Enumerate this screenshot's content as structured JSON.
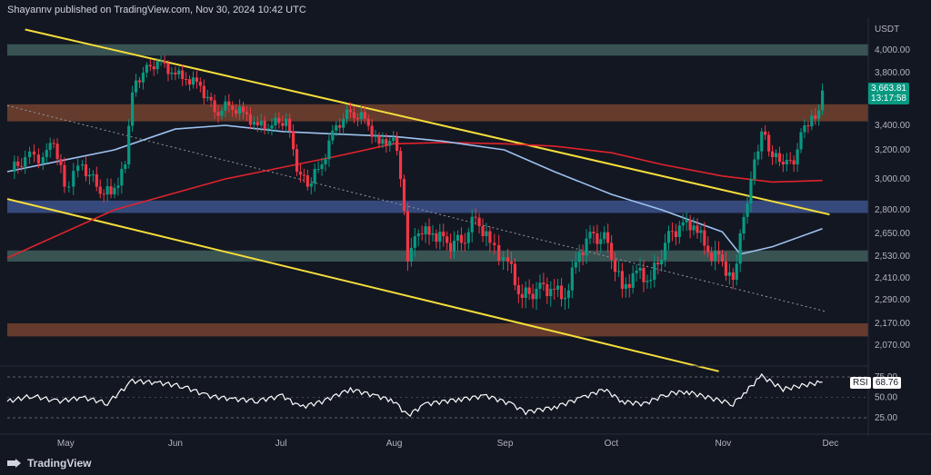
{
  "header": {
    "text": "Shayannv published on TradingView.com, Nov 30, 2024 10:42 UTC"
  },
  "currency": "USDT",
  "price_axis_labels": [
    "4,000.00",
    "3,800.00",
    "3,400.00",
    "3,200.00",
    "3,000.00",
    "2,800.00",
    "2,650.00",
    "2,530.00",
    "2,410.00",
    "2,290.00",
    "2,170.00",
    "2,070.00"
  ],
  "time_axis_labels": [
    "May",
    "Jun",
    "Jul",
    "Aug",
    "Sep",
    "Oct",
    "Nov",
    "Dec"
  ],
  "last_price": {
    "price": "3,663.81",
    "countdown": "13:17:58"
  },
  "rsi": {
    "name": "RSI",
    "value": "68.76",
    "axis_labels": [
      "75.00",
      "50.00",
      "25.00"
    ]
  },
  "footer": {
    "brand": "TradingView"
  },
  "colors": {
    "background": "#131722",
    "up": "#089981",
    "down": "#f23645",
    "support_zone": "#6e3f2e",
    "resistance_zone": "#3d5a58",
    "blue_zone": "#3b4f86",
    "trendline": "#f5dd3b",
    "ma_red": "#e0232b",
    "ma_blue": "#9ec2ef",
    "rsi_line": "#ffffff"
  },
  "chart_data": {
    "type": "line",
    "title": "",
    "x_start": "2024-04-15",
    "x_end": "2024-12-08",
    "y_axis": {
      "unit": "USDT",
      "ticks": [
        4000,
        3800,
        3400,
        3200,
        3000,
        2800,
        2650,
        2530,
        2410,
        2290,
        2170,
        2070
      ]
    },
    "price_series": [
      [
        "2024-04-16",
        3050
      ],
      [
        "2024-04-20",
        3150
      ],
      [
        "2024-04-25",
        3150
      ],
      [
        "2024-04-28",
        3250
      ],
      [
        "2024-05-01",
        2950
      ],
      [
        "2024-05-06",
        3100
      ],
      [
        "2024-05-10",
        2950
      ],
      [
        "2024-05-14",
        2900
      ],
      [
        "2024-05-18",
        3100
      ],
      [
        "2024-05-20",
        3650
      ],
      [
        "2024-05-23",
        3800
      ],
      [
        "2024-05-27",
        3900
      ],
      [
        "2024-05-31",
        3800
      ],
      [
        "2024-06-04",
        3750
      ],
      [
        "2024-06-08",
        3700
      ],
      [
        "2024-06-12",
        3500
      ],
      [
        "2024-06-16",
        3550
      ],
      [
        "2024-06-20",
        3500
      ],
      [
        "2024-06-24",
        3400
      ],
      [
        "2024-06-28",
        3400
      ],
      [
        "2024-07-02",
        3450
      ],
      [
        "2024-07-05",
        3050
      ],
      [
        "2024-07-08",
        2950
      ],
      [
        "2024-07-12",
        3100
      ],
      [
        "2024-07-16",
        3400
      ],
      [
        "2024-07-20",
        3500
      ],
      [
        "2024-07-24",
        3450
      ],
      [
        "2024-07-28",
        3250
      ],
      [
        "2024-08-01",
        3300
      ],
      [
        "2024-08-03",
        3000
      ],
      [
        "2024-08-05",
        2500
      ],
      [
        "2024-08-08",
        2650
      ],
      [
        "2024-08-12",
        2650
      ],
      [
        "2024-08-16",
        2600
      ],
      [
        "2024-08-20",
        2600
      ],
      [
        "2024-08-24",
        2750
      ],
      [
        "2024-08-28",
        2600
      ],
      [
        "2024-09-02",
        2500
      ],
      [
        "2024-09-06",
        2300
      ],
      [
        "2024-09-10",
        2350
      ],
      [
        "2024-09-14",
        2350
      ],
      [
        "2024-09-18",
        2300
      ],
      [
        "2024-09-22",
        2550
      ],
      [
        "2024-09-26",
        2650
      ],
      [
        "2024-09-30",
        2600
      ],
      [
        "2024-10-04",
        2350
      ],
      [
        "2024-10-08",
        2450
      ],
      [
        "2024-10-12",
        2400
      ],
      [
        "2024-10-16",
        2600
      ],
      [
        "2024-10-20",
        2700
      ],
      [
        "2024-10-24",
        2700
      ],
      [
        "2024-10-28",
        2550
      ],
      [
        "2024-11-01",
        2500
      ],
      [
        "2024-11-04",
        2400
      ],
      [
        "2024-11-06",
        2650
      ],
      [
        "2024-11-09",
        3000
      ],
      [
        "2024-11-12",
        3350
      ],
      [
        "2024-11-15",
        3150
      ],
      [
        "2024-11-18",
        3100
      ],
      [
        "2024-11-21",
        3100
      ],
      [
        "2024-11-24",
        3400
      ],
      [
        "2024-11-27",
        3450
      ],
      [
        "2024-11-29",
        3664
      ]
    ],
    "ma_red": [
      [
        "2024-04-15",
        2520
      ],
      [
        "2024-05-15",
        2800
      ],
      [
        "2024-06-15",
        3000
      ],
      [
        "2024-07-15",
        3150
      ],
      [
        "2024-08-01",
        3250
      ],
      [
        "2024-08-15",
        3260
      ],
      [
        "2024-09-01",
        3250
      ],
      [
        "2024-09-15",
        3230
      ],
      [
        "2024-10-01",
        3180
      ],
      [
        "2024-10-15",
        3100
      ],
      [
        "2024-11-01",
        3020
      ],
      [
        "2024-11-15",
        2980
      ],
      [
        "2024-11-29",
        2990
      ]
    ],
    "ma_blue": [
      [
        "2024-04-15",
        3050
      ],
      [
        "2024-05-01",
        3130
      ],
      [
        "2024-05-15",
        3200
      ],
      [
        "2024-06-01",
        3370
      ],
      [
        "2024-06-15",
        3400
      ],
      [
        "2024-07-01",
        3350
      ],
      [
        "2024-07-15",
        3330
      ],
      [
        "2024-08-01",
        3310
      ],
      [
        "2024-08-15",
        3270
      ],
      [
        "2024-09-01",
        3200
      ],
      [
        "2024-09-15",
        3050
      ],
      [
        "2024-10-01",
        2900
      ],
      [
        "2024-10-15",
        2800
      ],
      [
        "2024-11-01",
        2660
      ],
      [
        "2024-11-06",
        2540
      ],
      [
        "2024-11-15",
        2580
      ],
      [
        "2024-11-29",
        2680
      ]
    ],
    "trendlines": [
      {
        "from": [
          "2024-04-20",
          4180
        ],
        "to": [
          "2024-12-01",
          2770
        ]
      },
      {
        "from": [
          "2024-04-15",
          2870
        ],
        "to": [
          "2024-10-31",
          1950
        ]
      },
      {
        "from": [
          "2024-04-15",
          3550
        ],
        "to": [
          "2024-11-30",
          2230
        ],
        "dotted": true
      }
    ],
    "zones": [
      {
        "from": 3950,
        "to": 4050,
        "kind": "resistance"
      },
      {
        "from": 3430,
        "to": 3560,
        "kind": "support"
      },
      {
        "from": 2780,
        "to": 2860,
        "kind": "blue"
      },
      {
        "from": 2500,
        "to": 2560,
        "kind": "resistance"
      },
      {
        "from": 2110,
        "to": 2170,
        "kind": "support"
      }
    ],
    "rsi_series": [
      [
        "2024-04-15",
        45
      ],
      [
        "2024-04-22",
        52
      ],
      [
        "2024-04-29",
        45
      ],
      [
        "2024-05-06",
        50
      ],
      [
        "2024-05-13",
        43
      ],
      [
        "2024-05-20",
        70
      ],
      [
        "2024-05-27",
        68
      ],
      [
        "2024-06-03",
        64
      ],
      [
        "2024-06-10",
        52
      ],
      [
        "2024-06-17",
        48
      ],
      [
        "2024-06-24",
        46
      ],
      [
        "2024-07-01",
        52
      ],
      [
        "2024-07-06",
        38
      ],
      [
        "2024-07-12",
        45
      ],
      [
        "2024-07-20",
        60
      ],
      [
        "2024-07-27",
        52
      ],
      [
        "2024-08-01",
        46
      ],
      [
        "2024-08-05",
        28
      ],
      [
        "2024-08-10",
        42
      ],
      [
        "2024-08-20",
        48
      ],
      [
        "2024-08-27",
        52
      ],
      [
        "2024-09-03",
        42
      ],
      [
        "2024-09-07",
        32
      ],
      [
        "2024-09-15",
        38
      ],
      [
        "2024-09-23",
        50
      ],
      [
        "2024-09-29",
        60
      ],
      [
        "2024-10-04",
        45
      ],
      [
        "2024-10-10",
        42
      ],
      [
        "2024-10-17",
        55
      ],
      [
        "2024-10-22",
        57
      ],
      [
        "2024-10-28",
        50
      ],
      [
        "2024-11-04",
        42
      ],
      [
        "2024-11-07",
        55
      ],
      [
        "2024-11-12",
        76
      ],
      [
        "2024-11-18",
        60
      ],
      [
        "2024-11-24",
        65
      ],
      [
        "2024-11-29",
        68.76
      ]
    ],
    "rsi_range": [
      25,
      75
    ]
  }
}
